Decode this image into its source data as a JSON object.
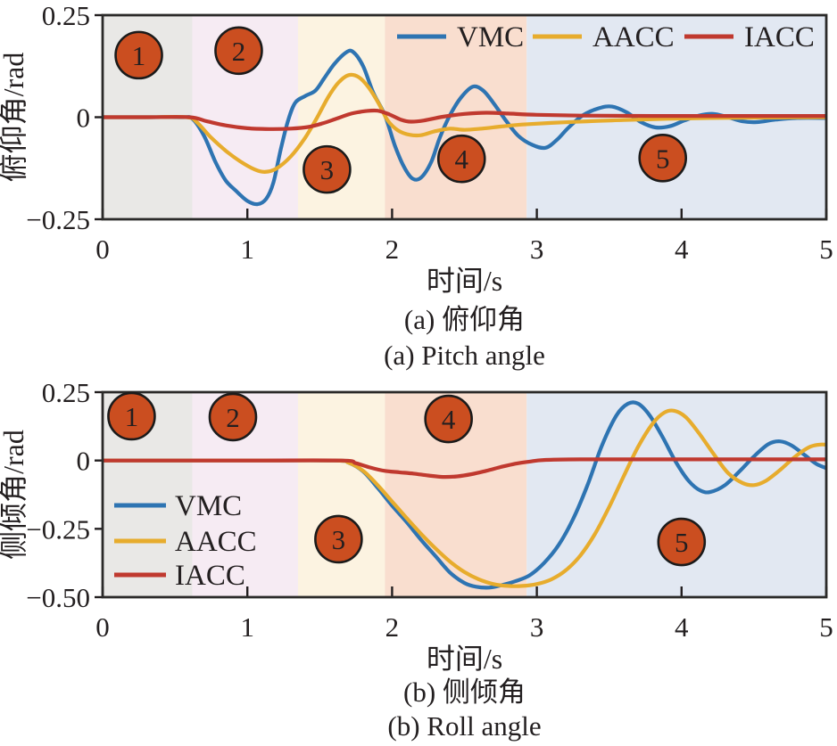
{
  "figure": {
    "captions": {
      "a_zh": "(a) 俯仰角",
      "a_en": "(a) Pitch angle",
      "b_zh": "(b) 侧倾角",
      "b_en": "(b) Roll angle"
    }
  },
  "colors": {
    "vmc": "#2e74b2",
    "aacc": "#e7ac2d",
    "iacc": "#c0392f",
    "annotation_fill": "#cb4e20",
    "annotation_border": "#1b1b1b",
    "annotation_text": "#ffffff",
    "axis": "#231f20",
    "bands": {
      "gray": "#e9e8e6",
      "pink": "#f6ebf3",
      "cream": "#fcf3e1",
      "peach": "#f9decf",
      "blue": "#e2e8f2"
    }
  },
  "chart_data": [
    {
      "type": "line",
      "title": "",
      "xlabel": "时间/s",
      "ylabel": "俯仰角/rad",
      "xlim": [
        0,
        5
      ],
      "ylim": [
        -0.25,
        0.25
      ],
      "grid": false,
      "xticks": [
        0,
        1,
        2,
        3,
        4,
        5
      ],
      "xtick_labels": [
        "0",
        "1",
        "2",
        "3",
        "4",
        "5"
      ],
      "yticks": [
        0.25,
        0,
        -0.25
      ],
      "ytick_labels": [
        "0.25",
        "0",
        "−0.25"
      ],
      "legend_position": "top-right-horizontal",
      "bands": [
        {
          "from": 0,
          "to": 0.62,
          "color_key": "gray"
        },
        {
          "from": 0.62,
          "to": 1.35,
          "color_key": "pink"
        },
        {
          "from": 1.35,
          "to": 1.95,
          "color_key": "cream"
        },
        {
          "from": 1.95,
          "to": 2.93,
          "color_key": "peach"
        },
        {
          "from": 2.93,
          "to": 5,
          "color_key": "blue"
        }
      ],
      "annotations": [
        {
          "label": "1",
          "t": 0.25,
          "v": 0.152
        },
        {
          "label": "2",
          "t": 0.94,
          "v": 0.163
        },
        {
          "label": "3",
          "t": 1.55,
          "v": -0.128
        },
        {
          "label": "4",
          "t": 2.48,
          "v": -0.102
        },
        {
          "label": "5",
          "t": 3.87,
          "v": -0.1
        }
      ],
      "series": [
        {
          "name": "VMC",
          "color_key": "vmc",
          "points": [
            [
              0,
              0
            ],
            [
              0.3,
              0
            ],
            [
              0.55,
              0
            ],
            [
              0.62,
              -0.004
            ],
            [
              0.7,
              -0.045
            ],
            [
              0.78,
              -0.11
            ],
            [
              0.85,
              -0.155
            ],
            [
              0.92,
              -0.18
            ],
            [
              1.0,
              -0.205
            ],
            [
              1.07,
              -0.213
            ],
            [
              1.13,
              -0.2
            ],
            [
              1.18,
              -0.16
            ],
            [
              1.23,
              -0.08
            ],
            [
              1.28,
              -0.01
            ],
            [
              1.33,
              0.035
            ],
            [
              1.4,
              0.052
            ],
            [
              1.47,
              0.065
            ],
            [
              1.53,
              0.095
            ],
            [
              1.6,
              0.13
            ],
            [
              1.68,
              0.158
            ],
            [
              1.73,
              0.16
            ],
            [
              1.8,
              0.125
            ],
            [
              1.87,
              0.06
            ],
            [
              1.95,
              0.005
            ],
            [
              2.02,
              -0.07
            ],
            [
              2.08,
              -0.12
            ],
            [
              2.14,
              -0.15
            ],
            [
              2.2,
              -0.148
            ],
            [
              2.27,
              -0.11
            ],
            [
              2.33,
              -0.05
            ],
            [
              2.4,
              0.005
            ],
            [
              2.48,
              0.05
            ],
            [
              2.56,
              0.075
            ],
            [
              2.63,
              0.065
            ],
            [
              2.7,
              0.035
            ],
            [
              2.78,
              -0.005
            ],
            [
              2.87,
              -0.045
            ],
            [
              2.97,
              -0.068
            ],
            [
              3.06,
              -0.075
            ],
            [
              3.14,
              -0.055
            ],
            [
              3.22,
              -0.025
            ],
            [
              3.32,
              0.005
            ],
            [
              3.43,
              0.022
            ],
            [
              3.52,
              0.026
            ],
            [
              3.62,
              0.012
            ],
            [
              3.72,
              -0.012
            ],
            [
              3.82,
              -0.025
            ],
            [
              3.92,
              -0.022
            ],
            [
              4.02,
              -0.008
            ],
            [
              4.12,
              0.004
            ],
            [
              4.22,
              0.008
            ],
            [
              4.32,
              0
            ],
            [
              4.42,
              -0.01
            ],
            [
              4.52,
              -0.012
            ],
            [
              4.65,
              -0.006
            ],
            [
              4.8,
              -0.002
            ],
            [
              5,
              -0.002
            ]
          ]
        },
        {
          "name": "AACC",
          "color_key": "aacc",
          "points": [
            [
              0,
              0
            ],
            [
              0.3,
              0
            ],
            [
              0.58,
              0
            ],
            [
              0.65,
              -0.012
            ],
            [
              0.75,
              -0.05
            ],
            [
              0.85,
              -0.082
            ],
            [
              0.95,
              -0.108
            ],
            [
              1.05,
              -0.128
            ],
            [
              1.12,
              -0.134
            ],
            [
              1.2,
              -0.126
            ],
            [
              1.3,
              -0.096
            ],
            [
              1.4,
              -0.05
            ],
            [
              1.48,
              -0.002
            ],
            [
              1.56,
              0.05
            ],
            [
              1.63,
              0.085
            ],
            [
              1.7,
              0.103
            ],
            [
              1.77,
              0.098
            ],
            [
              1.84,
              0.072
            ],
            [
              1.91,
              0.032
            ],
            [
              1.97,
              -0.008
            ],
            [
              2.04,
              -0.032
            ],
            [
              2.12,
              -0.043
            ],
            [
              2.2,
              -0.044
            ],
            [
              2.3,
              -0.034
            ],
            [
              2.4,
              -0.028
            ],
            [
              2.5,
              -0.031
            ],
            [
              2.62,
              -0.028
            ],
            [
              2.75,
              -0.023
            ],
            [
              2.9,
              -0.018
            ],
            [
              3.1,
              -0.014
            ],
            [
              3.35,
              -0.01
            ],
            [
              3.6,
              -0.007
            ],
            [
              3.9,
              -0.004
            ],
            [
              4.2,
              -0.002
            ],
            [
              4.5,
              -0.001
            ],
            [
              5,
              0
            ]
          ]
        },
        {
          "name": "IACC",
          "color_key": "iacc",
          "points": [
            [
              0,
              0
            ],
            [
              0.3,
              0
            ],
            [
              0.6,
              0
            ],
            [
              0.72,
              -0.01
            ],
            [
              0.85,
              -0.02
            ],
            [
              1.0,
              -0.027
            ],
            [
              1.15,
              -0.029
            ],
            [
              1.3,
              -0.028
            ],
            [
              1.42,
              -0.024
            ],
            [
              1.52,
              -0.015
            ],
            [
              1.62,
              -0.003
            ],
            [
              1.72,
              0.009
            ],
            [
              1.82,
              0.015
            ],
            [
              1.9,
              0.016
            ],
            [
              1.98,
              0.007
            ],
            [
              2.06,
              -0.006
            ],
            [
              2.13,
              -0.011
            ],
            [
              2.22,
              -0.008
            ],
            [
              2.35,
              0.001
            ],
            [
              2.5,
              0.008
            ],
            [
              2.65,
              0.011
            ],
            [
              2.8,
              0.009
            ],
            [
              3.0,
              0.006
            ],
            [
              3.3,
              0.004
            ],
            [
              3.8,
              0.003
            ],
            [
              4.4,
              0.003
            ],
            [
              5,
              0.003
            ]
          ]
        }
      ]
    },
    {
      "type": "line",
      "title": "",
      "xlabel": "时间/s",
      "ylabel": "侧倾角/rad",
      "xlim": [
        0,
        5
      ],
      "ylim": [
        -0.5,
        0.25
      ],
      "grid": false,
      "xticks": [
        0,
        1,
        2,
        3,
        4,
        5
      ],
      "xtick_labels": [
        "0",
        "1",
        "2",
        "3",
        "4",
        "5"
      ],
      "yticks": [
        0.25,
        0,
        -0.25,
        -0.5
      ],
      "ytick_labels": [
        "0.25",
        "0",
        "−0.25",
        "−0.50"
      ],
      "legend_position": "mid-left-vertical",
      "bands": [
        {
          "from": 0,
          "to": 0.62,
          "color_key": "gray"
        },
        {
          "from": 0.62,
          "to": 1.35,
          "color_key": "pink"
        },
        {
          "from": 1.35,
          "to": 1.95,
          "color_key": "cream"
        },
        {
          "from": 1.95,
          "to": 2.93,
          "color_key": "peach"
        },
        {
          "from": 2.93,
          "to": 5,
          "color_key": "blue"
        }
      ],
      "annotations": [
        {
          "label": "1",
          "t": 0.2,
          "v": 0.162
        },
        {
          "label": "2",
          "t": 0.9,
          "v": 0.159
        },
        {
          "label": "3",
          "t": 1.63,
          "v": -0.288
        },
        {
          "label": "4",
          "t": 2.39,
          "v": 0.152
        },
        {
          "label": "5",
          "t": 4.0,
          "v": -0.298
        }
      ],
      "series": [
        {
          "name": "VMC",
          "color_key": "vmc",
          "points": [
            [
              0,
              0
            ],
            [
              0.5,
              0
            ],
            [
              1.0,
              0
            ],
            [
              1.6,
              0
            ],
            [
              1.7,
              -0.008
            ],
            [
              1.8,
              -0.04
            ],
            [
              1.9,
              -0.1
            ],
            [
              2.0,
              -0.165
            ],
            [
              2.1,
              -0.225
            ],
            [
              2.2,
              -0.29
            ],
            [
              2.3,
              -0.35
            ],
            [
              2.4,
              -0.41
            ],
            [
              2.5,
              -0.448
            ],
            [
              2.58,
              -0.462
            ],
            [
              2.67,
              -0.465
            ],
            [
              2.75,
              -0.457
            ],
            [
              2.85,
              -0.442
            ],
            [
              2.95,
              -0.42
            ],
            [
              3.05,
              -0.375
            ],
            [
              3.15,
              -0.31
            ],
            [
              3.25,
              -0.215
            ],
            [
              3.35,
              -0.09
            ],
            [
              3.45,
              0.055
            ],
            [
              3.55,
              0.165
            ],
            [
              3.63,
              0.208
            ],
            [
              3.7,
              0.208
            ],
            [
              3.78,
              0.165
            ],
            [
              3.87,
              0.085
            ],
            [
              3.96,
              -0.005
            ],
            [
              4.05,
              -0.075
            ],
            [
              4.13,
              -0.11
            ],
            [
              4.2,
              -0.115
            ],
            [
              4.3,
              -0.09
            ],
            [
              4.4,
              -0.04
            ],
            [
              4.5,
              0.015
            ],
            [
              4.6,
              0.06
            ],
            [
              4.68,
              0.07
            ],
            [
              4.76,
              0.055
            ],
            [
              4.85,
              0.02
            ],
            [
              4.93,
              -0.012
            ],
            [
              5,
              -0.028
            ]
          ]
        },
        {
          "name": "AACC",
          "color_key": "aacc",
          "points": [
            [
              0,
              0
            ],
            [
              0.5,
              0
            ],
            [
              1.0,
              0
            ],
            [
              1.6,
              0
            ],
            [
              1.7,
              -0.008
            ],
            [
              1.8,
              -0.038
            ],
            [
              1.9,
              -0.09
            ],
            [
              2.0,
              -0.15
            ],
            [
              2.1,
              -0.21
            ],
            [
              2.2,
              -0.268
            ],
            [
              2.3,
              -0.322
            ],
            [
              2.4,
              -0.37
            ],
            [
              2.5,
              -0.408
            ],
            [
              2.6,
              -0.435
            ],
            [
              2.7,
              -0.452
            ],
            [
              2.8,
              -0.459
            ],
            [
              2.9,
              -0.459
            ],
            [
              3.0,
              -0.452
            ],
            [
              3.1,
              -0.435
            ],
            [
              3.2,
              -0.402
            ],
            [
              3.3,
              -0.348
            ],
            [
              3.4,
              -0.27
            ],
            [
              3.5,
              -0.17
            ],
            [
              3.6,
              -0.058
            ],
            [
              3.7,
              0.05
            ],
            [
              3.8,
              0.135
            ],
            [
              3.88,
              0.175
            ],
            [
              3.95,
              0.182
            ],
            [
              4.03,
              0.158
            ],
            [
              4.12,
              0.1
            ],
            [
              4.22,
              0.025
            ],
            [
              4.32,
              -0.045
            ],
            [
              4.42,
              -0.082
            ],
            [
              4.5,
              -0.09
            ],
            [
              4.58,
              -0.075
            ],
            [
              4.68,
              -0.035
            ],
            [
              4.78,
              0.012
            ],
            [
              4.88,
              0.048
            ],
            [
              4.95,
              0.058
            ],
            [
              5,
              0.058
            ]
          ]
        },
        {
          "name": "IACC",
          "color_key": "iacc",
          "points": [
            [
              0,
              0
            ],
            [
              0.5,
              0
            ],
            [
              1.0,
              0
            ],
            [
              1.65,
              0
            ],
            [
              1.75,
              -0.01
            ],
            [
              1.85,
              -0.026
            ],
            [
              1.95,
              -0.038
            ],
            [
              2.05,
              -0.043
            ],
            [
              2.15,
              -0.048
            ],
            [
              2.25,
              -0.055
            ],
            [
              2.35,
              -0.06
            ],
            [
              2.45,
              -0.058
            ],
            [
              2.55,
              -0.05
            ],
            [
              2.65,
              -0.038
            ],
            [
              2.75,
              -0.024
            ],
            [
              2.85,
              -0.012
            ],
            [
              2.95,
              -0.004
            ],
            [
              3.05,
              0.002
            ],
            [
              3.3,
              0.004
            ],
            [
              4.0,
              0.004
            ],
            [
              5,
              0.004
            ]
          ]
        }
      ]
    }
  ]
}
